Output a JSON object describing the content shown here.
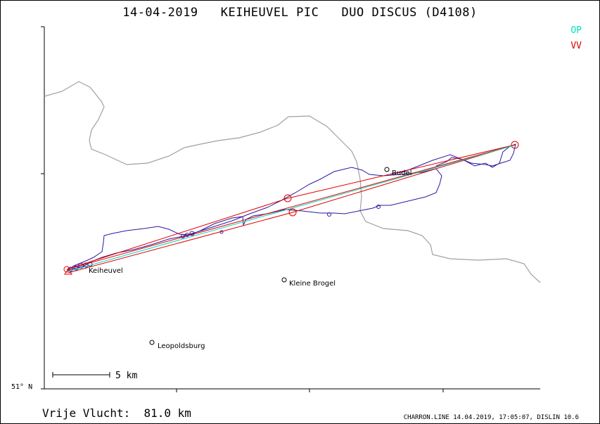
{
  "title": "14-04-2019   KEIHEUVEL PIC   DUO DISCUS (D4108)",
  "legend": {
    "op": "OP",
    "vv": "VV",
    "op_color": "#00e0c0",
    "vv_color": "#e00000"
  },
  "places": {
    "keiheuvel": "Keiheuvel",
    "budel": "Budel",
    "kleine_brogel": "Kleine Brogel",
    "leopoldsburg": "Leopoldsburg"
  },
  "scale": {
    "label": "5 km"
  },
  "latitude_label": "51° N",
  "footer": {
    "distance": "Vrije Vlucht:  81.0 km",
    "credit": "CHARRON.LINE 14.04.2019, 17:05:07, DISLIN 10.6"
  },
  "colors": {
    "track": "#2a1aa0",
    "border": "#a0a0a0",
    "axes": "#000000"
  }
}
